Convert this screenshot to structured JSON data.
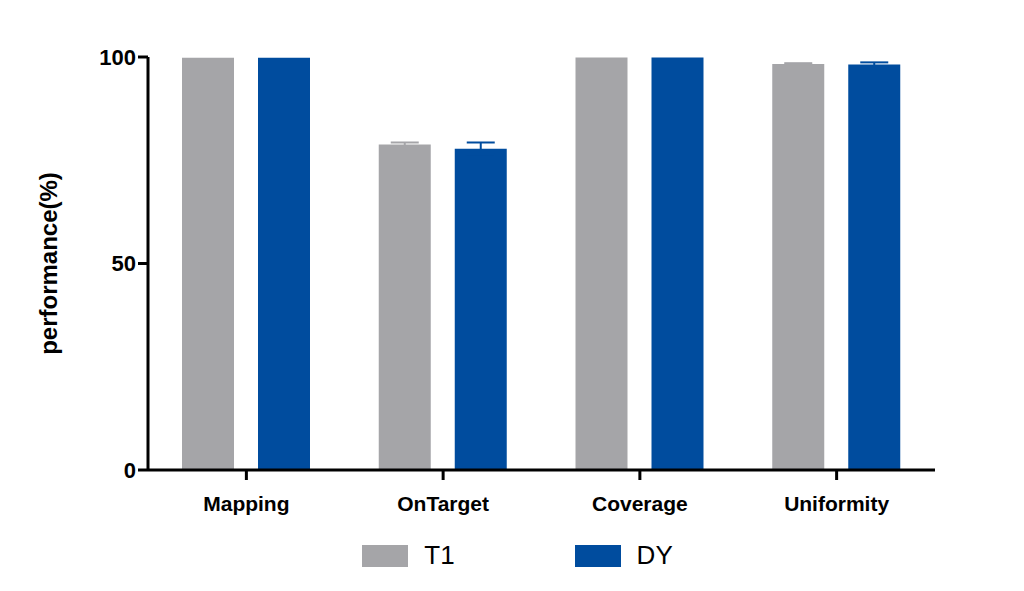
{
  "chart_data": {
    "type": "bar",
    "y_label": "performance(%)",
    "categories": [
      "Mapping",
      "OnTarget",
      "Coverage",
      "Uniformity"
    ],
    "series": [
      {
        "name": "T1",
        "color": "#a5a5a8",
        "values": [
          99.8,
          78.8,
          99.9,
          98.3
        ],
        "errors": [
          0,
          0.5,
          0,
          0.2
        ]
      },
      {
        "name": "DY",
        "color": "#004c9e",
        "values": [
          99.8,
          77.8,
          99.9,
          98.2
        ],
        "errors": [
          0,
          1.5,
          0,
          0.5
        ]
      }
    ],
    "ylim": [
      0,
      100
    ],
    "yticks": [
      0,
      50,
      100
    ],
    "grid": false,
    "legend": "bottom"
  }
}
